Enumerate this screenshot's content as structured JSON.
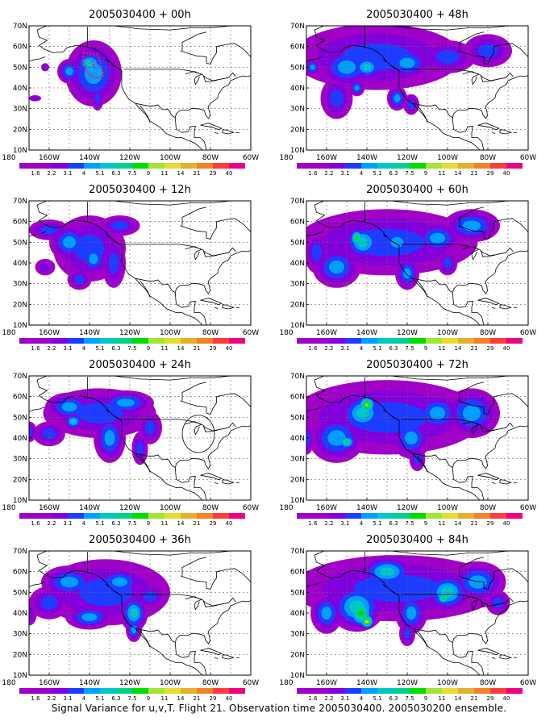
{
  "caption": "Signal Variance for u,v,T. Flight 21. Observation time 2005030400. 2005030200 ensemble.",
  "colorbar": {
    "labels": [
      "1.6",
      "2.2",
      "3.1",
      "4",
      "5.1",
      "6.3",
      "7.5",
      "9",
      "11",
      "14",
      "21",
      "29",
      "40"
    ],
    "colors": [
      "#a000c8",
      "#8200dc",
      "#1e3cff",
      "#00a0ff",
      "#00c8c8",
      "#00d28c",
      "#00dc00",
      "#a0e632",
      "#e6dc32",
      "#e6af2d",
      "#f08228",
      "#fa3c3c",
      "#f00082"
    ]
  },
  "axes": {
    "x_ticks": [
      "180",
      "160W",
      "140W",
      "120W",
      "100W",
      "80W",
      "60W"
    ],
    "y_ticks": [
      "10N",
      "20N",
      "30N",
      "40N",
      "50N",
      "60N",
      "70N"
    ],
    "lon_range": [
      -170,
      -60
    ],
    "lat_range": [
      10,
      70
    ]
  },
  "panels": [
    {
      "title": "2005030400 + 00h",
      "blobs": [
        [
          -138,
          47,
          14,
          16,
          3
        ],
        [
          -140,
          52,
          8,
          6,
          4
        ],
        [
          -150,
          48,
          6,
          6,
          3
        ],
        [
          -136,
          35,
          3,
          6,
          2
        ],
        [
          -162,
          50,
          2,
          2,
          1
        ],
        [
          -167,
          35,
          3,
          1.5,
          1
        ]
      ],
      "feature": "flight-track"
    },
    {
      "title": "2005030400 + 12h",
      "blobs": [
        [
          -140,
          47,
          18,
          16,
          2
        ],
        [
          -150,
          50,
          10,
          9,
          3
        ],
        [
          -138,
          42,
          7,
          8,
          3
        ],
        [
          -160,
          56,
          10,
          5,
          2
        ],
        [
          -125,
          58,
          10,
          5,
          2
        ],
        [
          -128,
          40,
          6,
          12,
          2
        ],
        [
          -162,
          38,
          5,
          4,
          1
        ],
        [
          -145,
          32,
          6,
          5,
          2
        ]
      ]
    },
    {
      "title": "2005030400 + 24h",
      "blobs": [
        [
          -135,
          52,
          28,
          12,
          2
        ],
        [
          -150,
          55,
          12,
          7,
          3
        ],
        [
          -122,
          57,
          14,
          6,
          3
        ],
        [
          -130,
          40,
          8,
          12,
          3
        ],
        [
          -160,
          42,
          8,
          6,
          2
        ],
        [
          -110,
          45,
          6,
          8,
          2
        ],
        [
          -148,
          48,
          5,
          4,
          4
        ],
        [
          -115,
          35,
          4,
          8,
          2
        ],
        [
          -170,
          43,
          4,
          5,
          2
        ]
      ],
      "feature": "circle"
    },
    {
      "title": "2005030400 + 36h",
      "blobs": [
        [
          -132,
          50,
          32,
          16,
          2
        ],
        [
          -150,
          55,
          14,
          8,
          3
        ],
        [
          -125,
          55,
          12,
          7,
          3
        ],
        [
          -118,
          40,
          7,
          9,
          4
        ],
        [
          -140,
          38,
          12,
          6,
          3
        ],
        [
          -160,
          45,
          10,
          8,
          2
        ],
        [
          -110,
          48,
          8,
          6,
          2
        ],
        [
          -118,
          32,
          4,
          6,
          3
        ],
        [
          -170,
          40,
          4,
          6,
          1
        ]
      ]
    },
    {
      "title": "2005030400 + 48h",
      "blobs": [
        [
          -135,
          55,
          42,
          16,
          2
        ],
        [
          -150,
          50,
          14,
          10,
          3
        ],
        [
          -140,
          50,
          8,
          6,
          4
        ],
        [
          -120,
          52,
          12,
          8,
          3
        ],
        [
          -100,
          55,
          14,
          8,
          2
        ],
        [
          -80,
          58,
          12,
          8,
          2
        ],
        [
          -155,
          35,
          8,
          10,
          2
        ],
        [
          -125,
          35,
          5,
          6,
          3
        ],
        [
          -145,
          40,
          4,
          4,
          3
        ],
        [
          -167,
          50,
          4,
          4,
          3
        ],
        [
          -118,
          32,
          4,
          5,
          2
        ]
      ]
    },
    {
      "title": "2005030400 + 60h",
      "blobs": [
        [
          -130,
          50,
          45,
          16,
          2
        ],
        [
          -142,
          50,
          10,
          9,
          4
        ],
        [
          -145,
          52,
          4,
          5,
          6
        ],
        [
          -155,
          38,
          12,
          10,
          3
        ],
        [
          -125,
          50,
          10,
          8,
          3
        ],
        [
          -105,
          52,
          12,
          8,
          3
        ],
        [
          -88,
          58,
          14,
          8,
          3
        ],
        [
          -165,
          45,
          6,
          10,
          2
        ],
        [
          -120,
          35,
          6,
          8,
          3
        ],
        [
          -100,
          40,
          5,
          6,
          2
        ]
      ]
    },
    {
      "title": "2005030400 + 72h",
      "blobs": [
        [
          -130,
          50,
          48,
          18,
          2
        ],
        [
          -142,
          52,
          12,
          10,
          4
        ],
        [
          -140,
          56,
          5,
          5,
          7
        ],
        [
          -155,
          40,
          14,
          12,
          3
        ],
        [
          -150,
          38,
          5,
          4,
          5
        ],
        [
          -118,
          40,
          10,
          10,
          3
        ],
        [
          -105,
          52,
          12,
          10,
          3
        ],
        [
          -88,
          52,
          14,
          12,
          3
        ],
        [
          -115,
          30,
          4,
          6,
          2
        ],
        [
          -170,
          40,
          4,
          8,
          2
        ]
      ]
    },
    {
      "title": "2005030400 + 84h",
      "blobs": [
        [
          -125,
          52,
          52,
          16,
          2
        ],
        [
          -145,
          43,
          14,
          12,
          4
        ],
        [
          -143,
          40,
          7,
          8,
          6
        ],
        [
          -140,
          36,
          4,
          4,
          8
        ],
        [
          -130,
          60,
          14,
          8,
          4
        ],
        [
          -100,
          50,
          12,
          10,
          4
        ],
        [
          -102,
          47,
          4,
          3,
          6
        ],
        [
          -85,
          55,
          14,
          10,
          3
        ],
        [
          -118,
          40,
          8,
          10,
          3
        ],
        [
          -160,
          40,
          8,
          10,
          3
        ],
        [
          -120,
          30,
          4,
          6,
          2
        ],
        [
          -75,
          45,
          6,
          6,
          2
        ]
      ]
    }
  ]
}
